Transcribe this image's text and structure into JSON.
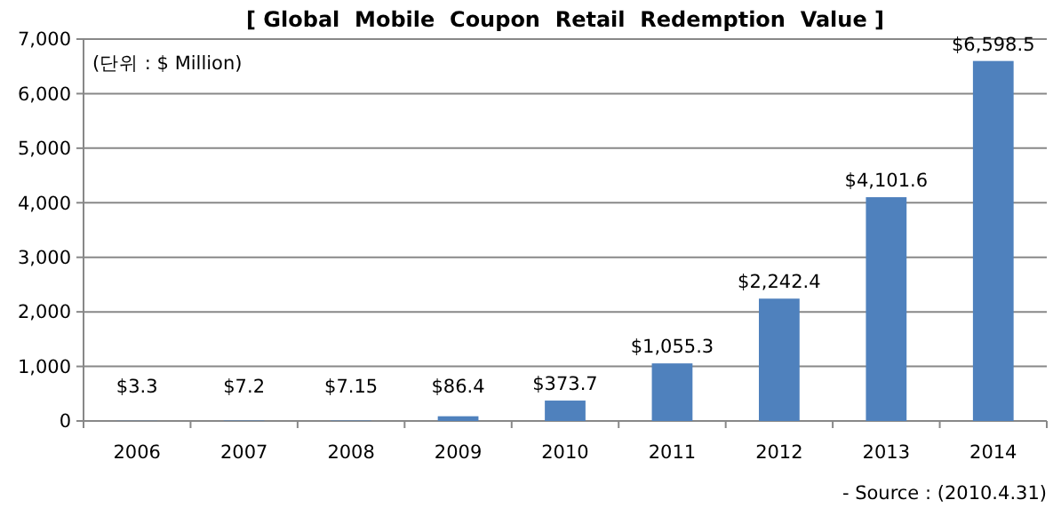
{
  "chart_data": {
    "type": "bar",
    "title": "[ Global  Mobile  Coupon  Retail  Redemption  Value ]",
    "categories": [
      "2006",
      "2007",
      "2008",
      "2009",
      "2010",
      "2011",
      "2012",
      "2013",
      "2014"
    ],
    "values": [
      3.3,
      7.2,
      7.15,
      86.4,
      373.7,
      1055.3,
      2242.4,
      4101.6,
      6598.5
    ],
    "value_labels": [
      "$3.3",
      "$7.2",
      "$7.15",
      "$86.4",
      "$373.7",
      "$1,055.3",
      "$2,242.4",
      "$4,101.6",
      "$6,598.5"
    ],
    "color": "#4f81bd",
    "ylim": [
      0,
      7000
    ],
    "yticks": [
      0,
      {
        "value": 1000,
        "label": "1,000"
      },
      {
        "value": 2000,
        "label": "2,000"
      },
      {
        "value": 3000,
        "label": "3,000"
      },
      {
        "value": 4000,
        "label": "4,000"
      },
      {
        "value": 5000,
        "label": "5,000"
      },
      {
        "value": 6000,
        "label": "6,000"
      },
      {
        "value": 7000,
        "label": "7,000"
      }
    ],
    "grid": "y",
    "annotations": [
      "(단위 : $ Million)",
      "- Source : (2010.4.31)"
    ]
  }
}
